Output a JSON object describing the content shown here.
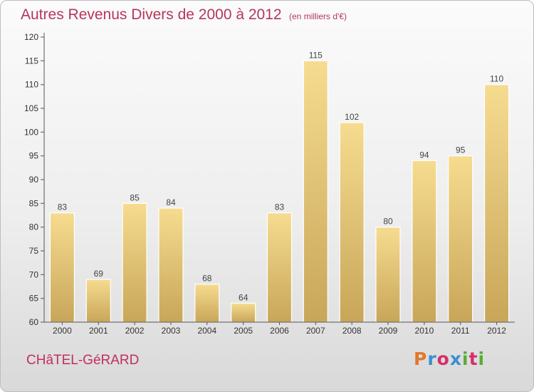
{
  "header": {
    "title": "Autres Revenus Divers de 2000 à 2012",
    "unit": "(en milliers d'€)"
  },
  "footer": {
    "town": "CHâTEL-GéRARD",
    "brand": "Proxiti",
    "brand_colors": [
      "#e0782b",
      "#3c8fd1",
      "#d6306a",
      "#3c8fd1",
      "#5aab36",
      "#d6306a",
      "#5aab36"
    ]
  },
  "colors": {
    "title": "#b5375a",
    "town": "#c0305e",
    "bar_light": "#f6dc90",
    "bar_dark": "#c8a659",
    "axis": "#555555"
  },
  "chart_data": {
    "type": "bar",
    "categories": [
      "2000",
      "2001",
      "2002",
      "2003",
      "2004",
      "2005",
      "2006",
      "2007",
      "2008",
      "2009",
      "2010",
      "2011",
      "2012"
    ],
    "values": [
      83,
      69,
      85,
      84,
      68,
      64,
      83,
      115,
      102,
      80,
      94,
      95,
      110
    ],
    "title": "Autres Revenus Divers de 2000 à 2012",
    "xlabel": "",
    "ylabel": "",
    "ylim": [
      60,
      120
    ],
    "yticks": [
      60,
      65,
      70,
      75,
      80,
      85,
      90,
      95,
      100,
      105,
      110,
      115,
      120
    ],
    "grid": false,
    "legend": "none"
  }
}
